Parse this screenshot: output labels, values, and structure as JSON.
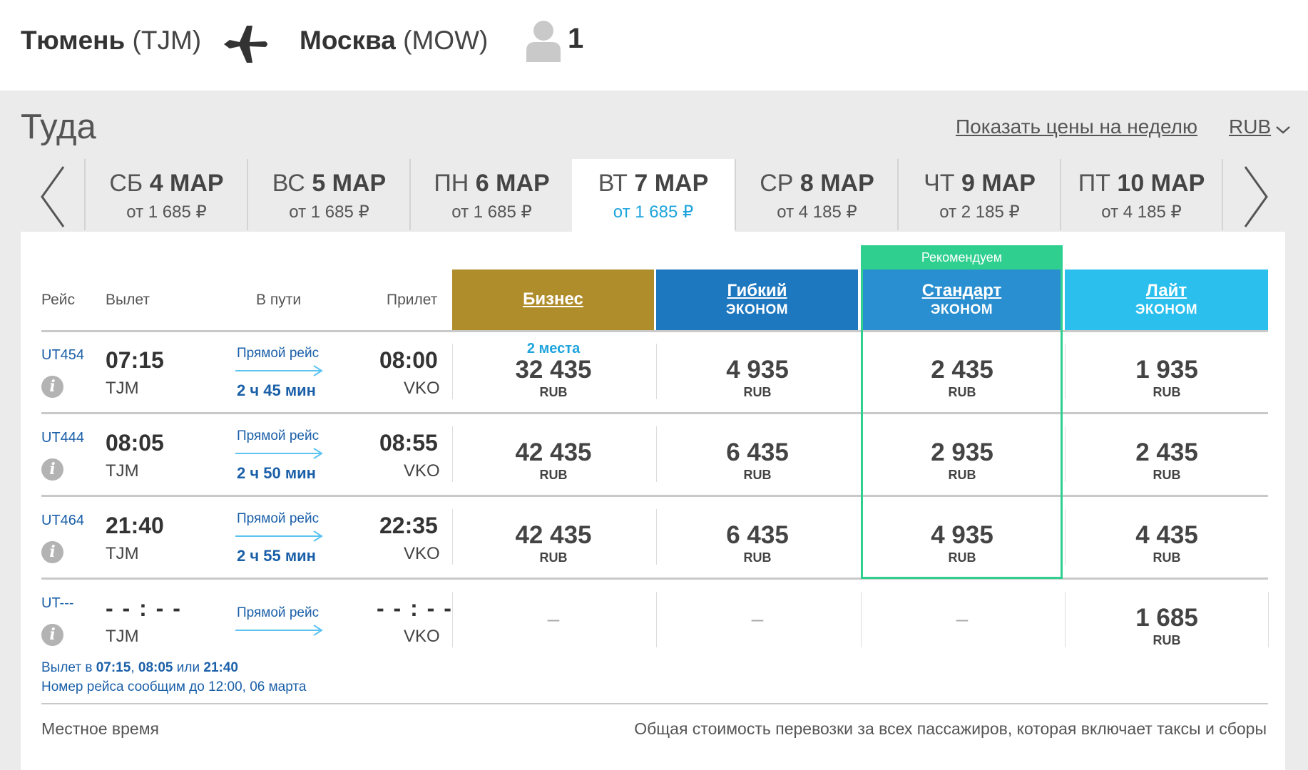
{
  "header": {
    "origin_city": "Тюмень",
    "origin_code": "(TJM)",
    "dest_city": "Москва",
    "dest_code": "(MOW)",
    "passenger_count": "1"
  },
  "section": {
    "title": "Туда",
    "week_prices_link": "Показать цены на неделю",
    "currency": "RUB"
  },
  "dates": [
    {
      "dow": "СБ",
      "date": "4 МАР",
      "from_prefix": "от",
      "price": "1 685 ₽",
      "active": false
    },
    {
      "dow": "ВС",
      "date": "5 МАР",
      "from_prefix": "от",
      "price": "1 685 ₽",
      "active": false
    },
    {
      "dow": "ПН",
      "date": "6 МАР",
      "from_prefix": "от",
      "price": "1 685 ₽",
      "active": false
    },
    {
      "dow": "ВТ",
      "date": "7 МАР",
      "from_prefix": "от",
      "price": "1 685 ₽",
      "active": true
    },
    {
      "dow": "СР",
      "date": "8 МАР",
      "from_prefix": "от",
      "price": "4 185 ₽",
      "active": false
    },
    {
      "dow": "ЧТ",
      "date": "9 МАР",
      "from_prefix": "от",
      "price": "2 185 ₽",
      "active": false
    },
    {
      "dow": "ПТ",
      "date": "10 МАР",
      "from_prefix": "от",
      "price": "4 185 ₽",
      "active": false
    }
  ],
  "columns": {
    "flight": "Рейс",
    "departure": "Вылет",
    "duration": "В пути",
    "arrival": "Прилет"
  },
  "recommend_label": "Рекомендуем",
  "fares": [
    {
      "name": "Бизнес",
      "sub": "",
      "color": "#b08d2b"
    },
    {
      "name": "Гибкий",
      "sub": "ЭКОНОМ",
      "color": "#1e78c0"
    },
    {
      "name": "Стандарт",
      "sub": "ЭКОНОМ",
      "color": "#2a8fd0"
    },
    {
      "name": "Лайт",
      "sub": "ЭКОНОМ",
      "color": "#2bbfee"
    }
  ],
  "flights": [
    {
      "number": "UT454",
      "dep_time": "07:15",
      "dep_airport": "TJM",
      "direct": "Прямой рейс",
      "duration": "2 ч 45 мин",
      "arr_time": "08:00",
      "arr_airport": "VKO",
      "prices": [
        {
          "seats": "2 места",
          "amount": "32 435",
          "currency": "RUB"
        },
        {
          "seats": "",
          "amount": "4 935",
          "currency": "RUB"
        },
        {
          "seats": "",
          "amount": "2 435",
          "currency": "RUB"
        },
        {
          "seats": "",
          "amount": "1 935",
          "currency": "RUB"
        }
      ]
    },
    {
      "number": "UT444",
      "dep_time": "08:05",
      "dep_airport": "TJM",
      "direct": "Прямой рейс",
      "duration": "2 ч 50 мин",
      "arr_time": "08:55",
      "arr_airport": "VKO",
      "prices": [
        {
          "seats": "",
          "amount": "42 435",
          "currency": "RUB"
        },
        {
          "seats": "",
          "amount": "6 435",
          "currency": "RUB"
        },
        {
          "seats": "",
          "amount": "2 935",
          "currency": "RUB"
        },
        {
          "seats": "",
          "amount": "2 435",
          "currency": "RUB"
        }
      ]
    },
    {
      "number": "UT464",
      "dep_time": "21:40",
      "dep_airport": "TJM",
      "direct": "Прямой рейс",
      "duration": "2 ч 55 мин",
      "arr_time": "22:35",
      "arr_airport": "VKO",
      "prices": [
        {
          "seats": "",
          "amount": "42 435",
          "currency": "RUB"
        },
        {
          "seats": "",
          "amount": "6 435",
          "currency": "RUB"
        },
        {
          "seats": "",
          "amount": "4 935",
          "currency": "RUB"
        },
        {
          "seats": "",
          "amount": "4 435",
          "currency": "RUB"
        }
      ]
    },
    {
      "number": "UT---",
      "dep_time": "- - : - -",
      "dep_airport": "TJM",
      "direct": "Прямой рейс",
      "duration": "",
      "arr_time": "- - : - -",
      "arr_airport": "VKO",
      "prices": [
        {
          "dash": "–"
        },
        {
          "dash": "–"
        },
        {
          "dash": "–"
        },
        {
          "seats": "",
          "amount": "1 685",
          "currency": "RUB"
        }
      ]
    }
  ],
  "notes": {
    "dep_prefix": "Вылет в",
    "dep_times": [
      "07:15",
      "08:05",
      "21:40"
    ],
    "sep1": ",",
    "sep2": "или",
    "flight_number_note": "Номер рейса сообщим до 12:00, 06 марта"
  },
  "footer": {
    "local_time": "Местное время",
    "total_note": "Общая стоимость перевозки за всех пассажиров, которая включает таксы и сборы"
  }
}
